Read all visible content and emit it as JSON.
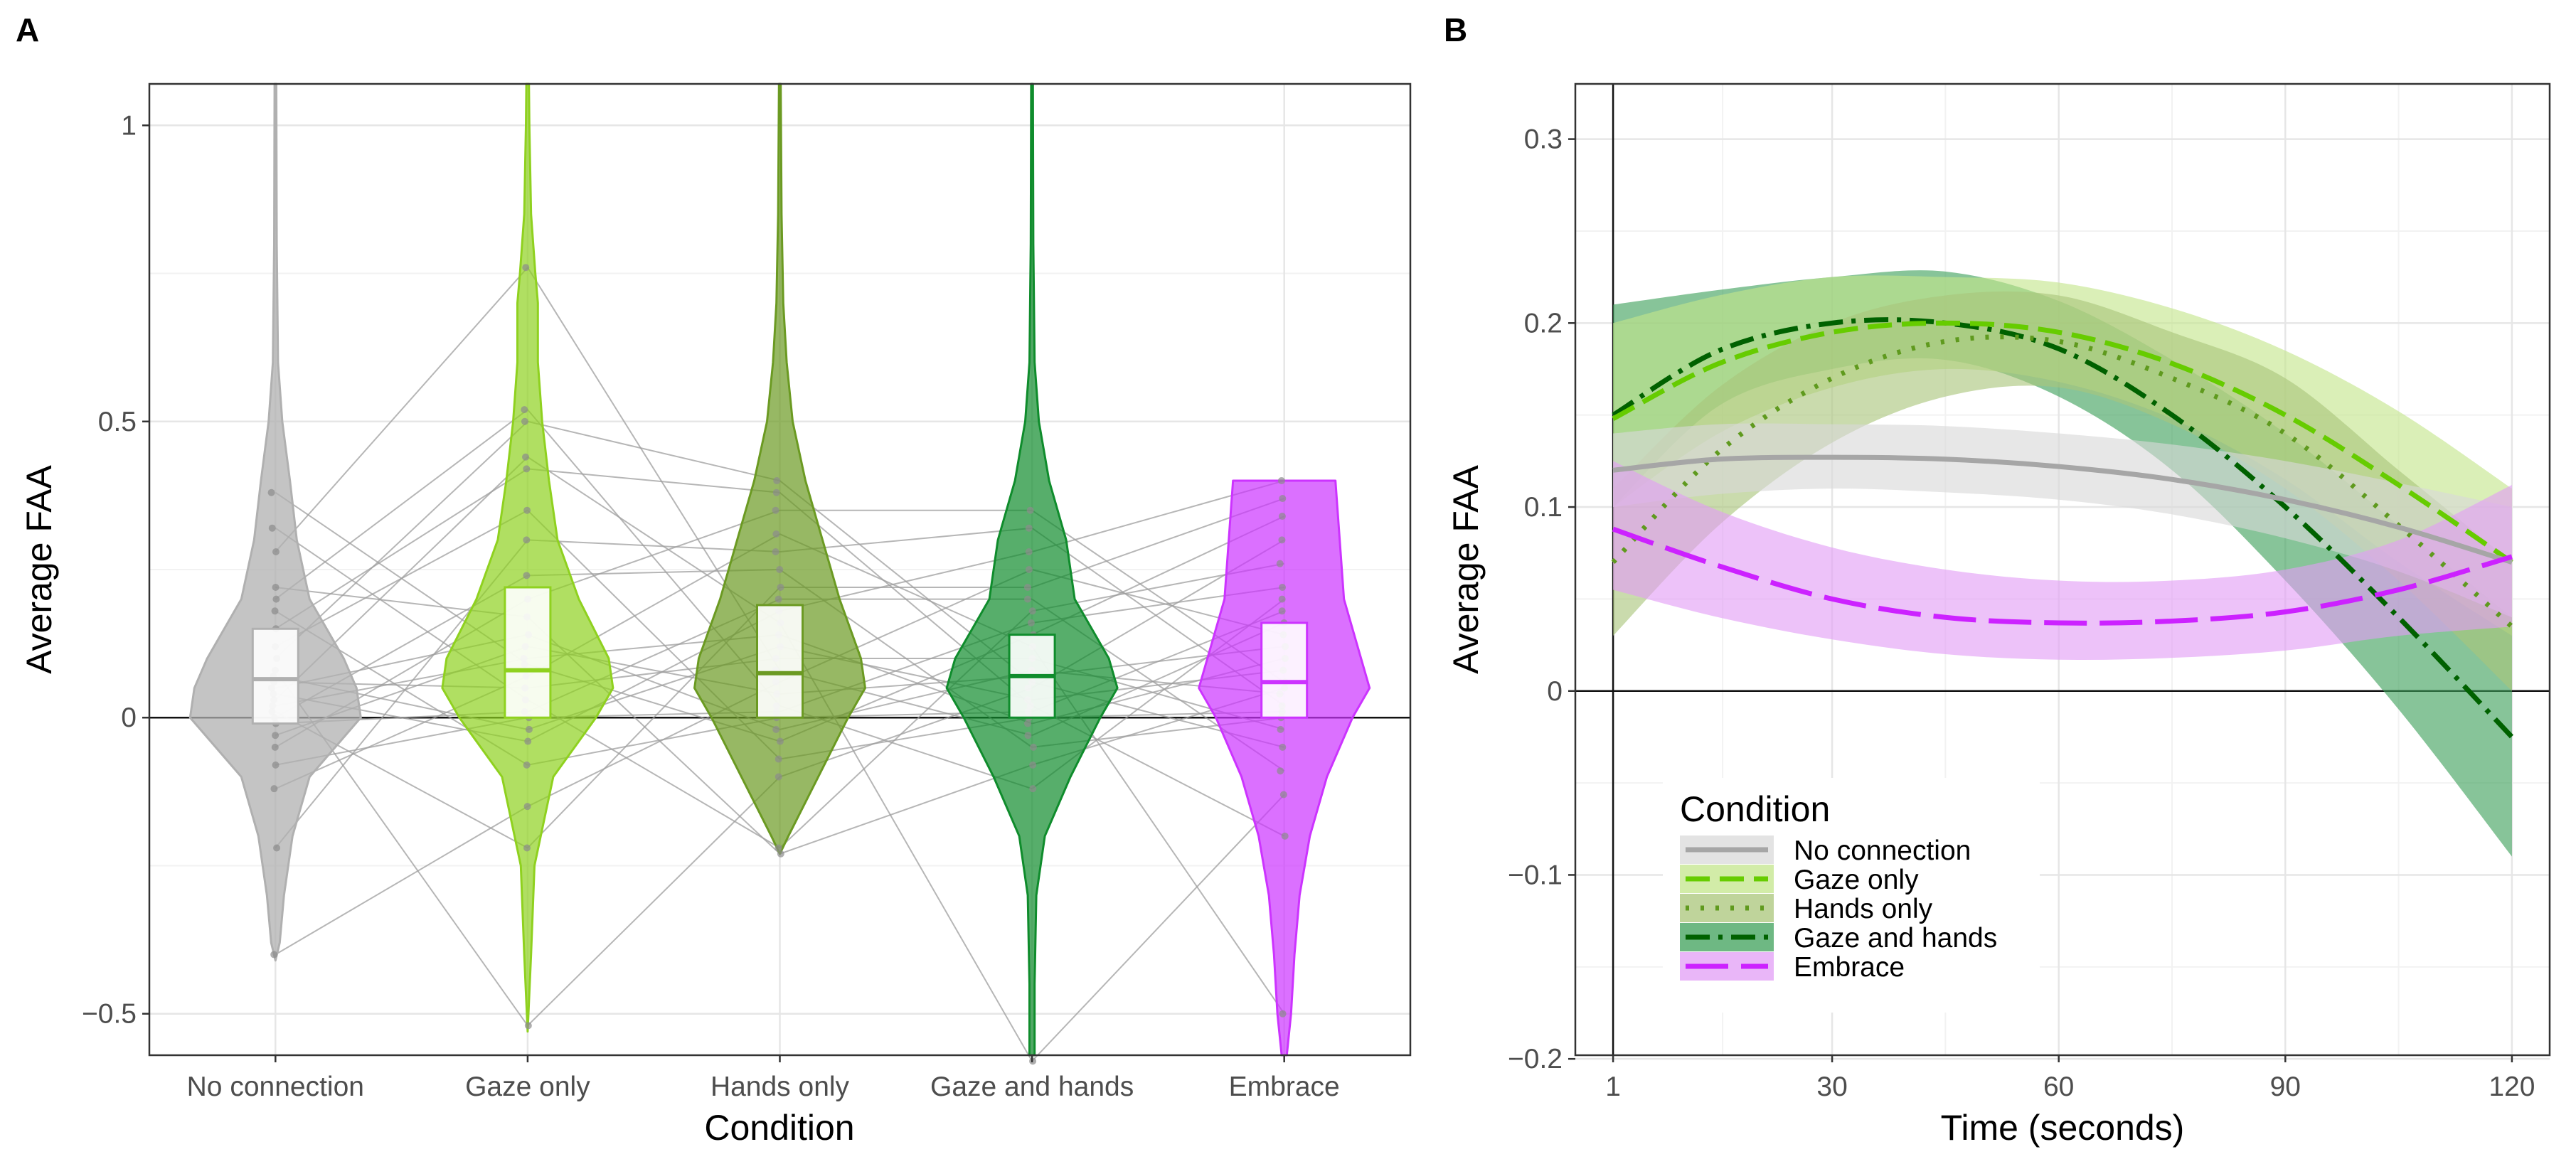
{
  "chart_data": [
    {
      "panel": "A",
      "type": "violin",
      "xlabel": "Condition",
      "ylabel": "Average FAA",
      "ylim": [
        -0.57,
        1.07
      ],
      "yticks": [
        -0.5,
        0,
        0.5,
        1
      ],
      "ytick_labels": [
        "−0.5",
        "0",
        "0.5",
        "1"
      ],
      "grid": true,
      "categories": [
        "No connection",
        "Gaze only",
        "Hands only",
        "Gaze and hands",
        "Embrace"
      ],
      "colors": [
        "#b0b0b0",
        "#8fd11f",
        "#6b9a22",
        "#0f8c2c",
        "#cc33ff"
      ],
      "box": [
        {
          "q1": -0.01,
          "median": 0.065,
          "q3": 0.15
        },
        {
          "q1": 0.0,
          "median": 0.08,
          "q3": 0.22
        },
        {
          "q1": 0.0,
          "median": 0.075,
          "q3": 0.19
        },
        {
          "q1": 0.0,
          "median": 0.07,
          "q3": 0.14
        },
        {
          "q1": 0.0,
          "median": 0.06,
          "q3": 0.16
        }
      ],
      "violin_range": [
        [
          -0.41,
          1.07
        ],
        [
          -0.53,
          1.07
        ],
        [
          -0.23,
          1.07
        ],
        [
          -0.57,
          1.07
        ],
        [
          -0.57,
          0.4
        ]
      ],
      "violin_profile": [
        [
          [
            -0.41,
            0.0
          ],
          [
            -0.38,
            0.05
          ],
          [
            -0.3,
            0.1
          ],
          [
            -0.2,
            0.2
          ],
          [
            -0.1,
            0.4
          ],
          [
            -0.05,
            0.7
          ],
          [
            0.0,
            1.0
          ],
          [
            0.05,
            0.95
          ],
          [
            0.1,
            0.8
          ],
          [
            0.15,
            0.6
          ],
          [
            0.2,
            0.4
          ],
          [
            0.3,
            0.25
          ],
          [
            0.4,
            0.17
          ],
          [
            0.5,
            0.08
          ],
          [
            0.6,
            0.03
          ],
          [
            0.8,
            0.015
          ],
          [
            1.07,
            0.01
          ]
        ],
        [
          [
            -0.53,
            0.0
          ],
          [
            -0.4,
            0.04
          ],
          [
            -0.25,
            0.08
          ],
          [
            -0.1,
            0.3
          ],
          [
            -0.05,
            0.55
          ],
          [
            0.0,
            0.8
          ],
          [
            0.05,
            1.0
          ],
          [
            0.1,
            0.95
          ],
          [
            0.2,
            0.6
          ],
          [
            0.3,
            0.35
          ],
          [
            0.4,
            0.25
          ],
          [
            0.5,
            0.17
          ],
          [
            0.6,
            0.12
          ],
          [
            0.7,
            0.12
          ],
          [
            0.75,
            0.09
          ],
          [
            0.85,
            0.04
          ],
          [
            1.0,
            0.02
          ],
          [
            1.07,
            0.015
          ]
        ],
        [
          [
            -0.23,
            0.0
          ],
          [
            -0.2,
            0.1
          ],
          [
            -0.1,
            0.45
          ],
          [
            0.0,
            0.8
          ],
          [
            0.05,
            1.0
          ],
          [
            0.1,
            0.95
          ],
          [
            0.2,
            0.7
          ],
          [
            0.3,
            0.5
          ],
          [
            0.4,
            0.3
          ],
          [
            0.5,
            0.15
          ],
          [
            0.6,
            0.08
          ],
          [
            0.7,
            0.04
          ],
          [
            0.85,
            0.02
          ],
          [
            1.07,
            0.01
          ]
        ],
        [
          [
            -0.57,
            0.03
          ],
          [
            -0.45,
            0.03
          ],
          [
            -0.3,
            0.05
          ],
          [
            -0.2,
            0.15
          ],
          [
            -0.1,
            0.45
          ],
          [
            0.0,
            0.8
          ],
          [
            0.05,
            1.0
          ],
          [
            0.1,
            0.9
          ],
          [
            0.2,
            0.5
          ],
          [
            0.25,
            0.45
          ],
          [
            0.3,
            0.4
          ],
          [
            0.4,
            0.2
          ],
          [
            0.5,
            0.08
          ],
          [
            0.6,
            0.03
          ],
          [
            0.8,
            0.015
          ],
          [
            1.07,
            0.01
          ]
        ],
        [
          [
            -0.57,
            0.03
          ],
          [
            -0.5,
            0.08
          ],
          [
            -0.4,
            0.12
          ],
          [
            -0.3,
            0.18
          ],
          [
            -0.2,
            0.3
          ],
          [
            -0.1,
            0.5
          ],
          [
            0.0,
            0.8
          ],
          [
            0.05,
            1.0
          ],
          [
            0.1,
            0.9
          ],
          [
            0.2,
            0.7
          ],
          [
            0.3,
            0.65
          ],
          [
            0.4,
            0.6
          ]
        ]
      ],
      "points": [
        [
          -0.4,
          -0.22,
          -0.12,
          -0.08,
          -0.05,
          -0.03,
          -0.01,
          0.0,
          0.01,
          0.02,
          0.03,
          0.04,
          0.05,
          0.06,
          0.07,
          0.08,
          0.1,
          0.12,
          0.15,
          0.18,
          0.2,
          0.22,
          0.28,
          0.32,
          0.38
        ],
        [
          -0.52,
          -0.22,
          -0.15,
          -0.08,
          -0.04,
          -0.02,
          0.0,
          0.01,
          0.03,
          0.05,
          0.07,
          0.09,
          0.1,
          0.12,
          0.14,
          0.17,
          0.2,
          0.24,
          0.3,
          0.35,
          0.42,
          0.44,
          0.5,
          0.52,
          0.76
        ],
        [
          -0.23,
          -0.22,
          -0.1,
          -0.07,
          -0.04,
          -0.02,
          0.0,
          0.01,
          0.02,
          0.04,
          0.06,
          0.08,
          0.1,
          0.12,
          0.14,
          0.16,
          0.18,
          0.2,
          0.22,
          0.25,
          0.28,
          0.31,
          0.35,
          0.38,
          0.4
        ],
        [
          -0.58,
          -0.12,
          -0.08,
          -0.05,
          -0.03,
          -0.01,
          0.0,
          0.01,
          0.02,
          0.03,
          0.05,
          0.06,
          0.07,
          0.08,
          0.1,
          0.12,
          0.14,
          0.16,
          0.18,
          0.2,
          0.22,
          0.25,
          0.28,
          0.32,
          0.35
        ],
        [
          -0.5,
          -0.2,
          -0.13,
          -0.09,
          -0.05,
          -0.02,
          0.0,
          0.01,
          0.02,
          0.04,
          0.05,
          0.06,
          0.08,
          0.1,
          0.12,
          0.14,
          0.16,
          0.18,
          0.2,
          0.22,
          0.26,
          0.3,
          0.34,
          0.37,
          0.4
        ]
      ]
    },
    {
      "panel": "B",
      "type": "line",
      "xlabel": "Time (seconds)",
      "ylabel": "Average FAA",
      "xlim": [
        -4,
        125
      ],
      "ylim": [
        -0.198,
        0.33
      ],
      "xticks": [
        1,
        30,
        60,
        90,
        120
      ],
      "xtick_labels": [
        "1",
        "30",
        "60",
        "90",
        "120"
      ],
      "yticks": [
        -0.2,
        -0.1,
        0,
        0.1,
        0.2,
        0.3
      ],
      "ytick_labels": [
        "−0.2",
        "−0.1",
        "0",
        "0.1",
        "0.2",
        "0.3"
      ],
      "grid": true,
      "legend_title": "Condition",
      "legend_position": "bottom-left",
      "x": [
        1,
        15,
        30,
        45,
        60,
        75,
        90,
        105,
        120
      ],
      "series": [
        {
          "name": "No connection",
          "color": "#a6a6a6",
          "band_color": "#d9d9d9",
          "dash": "",
          "values": [
            0.12,
            0.126,
            0.127,
            0.126,
            0.122,
            0.115,
            0.104,
            0.089,
            0.07
          ],
          "lower": [
            0.1,
            0.107,
            0.11,
            0.108,
            0.104,
            0.096,
            0.083,
            0.065,
            0.04
          ],
          "upper": [
            0.14,
            0.145,
            0.145,
            0.144,
            0.14,
            0.134,
            0.125,
            0.113,
            0.1
          ]
        },
        {
          "name": "Gaze only",
          "color": "#66cc00",
          "band_color": "#c3e58b",
          "dash": "34 14",
          "values": [
            0.148,
            0.178,
            0.195,
            0.2,
            0.195,
            0.178,
            0.15,
            0.112,
            0.07
          ],
          "lower": [
            0.1,
            0.14,
            0.165,
            0.175,
            0.168,
            0.148,
            0.115,
            0.07,
            0.03
          ],
          "upper": [
            0.2,
            0.215,
            0.225,
            0.225,
            0.222,
            0.208,
            0.185,
            0.152,
            0.11
          ]
        },
        {
          "name": "Hands only",
          "color": "#5f9a1e",
          "band_color": "#a9c57a",
          "dash": "5 16",
          "values": [
            0.07,
            0.13,
            0.17,
            0.19,
            0.19,
            0.17,
            0.14,
            0.09,
            0.035
          ],
          "lower": [
            0.03,
            0.09,
            0.135,
            0.16,
            0.165,
            0.145,
            0.11,
            0.06,
            0.0
          ],
          "upper": [
            0.11,
            0.165,
            0.2,
            0.215,
            0.215,
            0.195,
            0.17,
            0.12,
            0.07
          ]
        },
        {
          "name": "Gaze and hands",
          "color": "#006100",
          "band_color": "#3da05a",
          "dash": "34 12 6 12",
          "values": [
            0.15,
            0.185,
            0.2,
            0.2,
            0.186,
            0.15,
            0.1,
            0.04,
            -0.025
          ],
          "lower": [
            0.1,
            0.155,
            0.175,
            0.18,
            0.16,
            0.12,
            0.06,
            -0.01,
            -0.09
          ],
          "upper": [
            0.21,
            0.218,
            0.225,
            0.228,
            0.212,
            0.18,
            0.14,
            0.09,
            0.04
          ]
        },
        {
          "name": "Embrace",
          "color": "#cc22ff",
          "band_color": "#e29df5",
          "dash": "60 18",
          "values": [
            0.088,
            0.068,
            0.05,
            0.04,
            0.037,
            0.038,
            0.043,
            0.055,
            0.073
          ],
          "lower": [
            0.055,
            0.04,
            0.028,
            0.02,
            0.017,
            0.018,
            0.022,
            0.03,
            0.035
          ],
          "upper": [
            0.125,
            0.098,
            0.078,
            0.066,
            0.06,
            0.06,
            0.066,
            0.082,
            0.112
          ]
        }
      ]
    }
  ]
}
